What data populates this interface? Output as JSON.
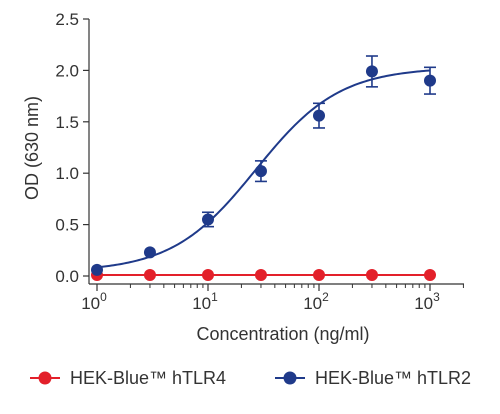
{
  "chart_data": {
    "type": "scatter",
    "x_scale": "log",
    "xlabel": "Concentration (ng/ml)",
    "ylabel": "OD (630 nm)",
    "xlim": [
      1,
      2000
    ],
    "ylim": [
      0,
      2.5
    ],
    "x_ticks": [
      {
        "value": 1,
        "base": "10",
        "exp": "0"
      },
      {
        "value": 10,
        "base": "10",
        "exp": "1"
      },
      {
        "value": 100,
        "base": "10",
        "exp": "2"
      },
      {
        "value": 1000,
        "base": "10",
        "exp": "3"
      }
    ],
    "y_ticks": [
      {
        "value": 0,
        "label": "0.0"
      },
      {
        "value": 0.5,
        "label": "0.5"
      },
      {
        "value": 1.0,
        "label": "1.0"
      },
      {
        "value": 1.5,
        "label": "1.5"
      },
      {
        "value": 2.0,
        "label": "2.0"
      },
      {
        "value": 2.5,
        "label": "2.5"
      }
    ],
    "grid": false,
    "legend_position": "bottom",
    "series": [
      {
        "name": "HEK-Blue™ hTLR4",
        "color": "#e3202a",
        "x": [
          1,
          3,
          10,
          30,
          100,
          300,
          1000
        ],
        "y": [
          0.01,
          0.01,
          0.01,
          0.01,
          0.01,
          0.01,
          0.01
        ],
        "err": [
          0,
          0,
          0,
          0,
          0,
          0,
          0
        ]
      },
      {
        "name": "HEK-Blue™ hTLR2",
        "color": "#1f3a8a",
        "x": [
          1,
          3,
          10,
          30,
          100,
          300,
          1000
        ],
        "y": [
          0.06,
          0.23,
          0.55,
          1.02,
          1.56,
          1.99,
          1.9
        ],
        "err": [
          0,
          0,
          0.07,
          0.1,
          0.12,
          0.15,
          0.13
        ],
        "fit": {
          "bottom": 0.04,
          "top": 2.03,
          "ec50": 27,
          "hill": 1.15
        }
      }
    ]
  }
}
